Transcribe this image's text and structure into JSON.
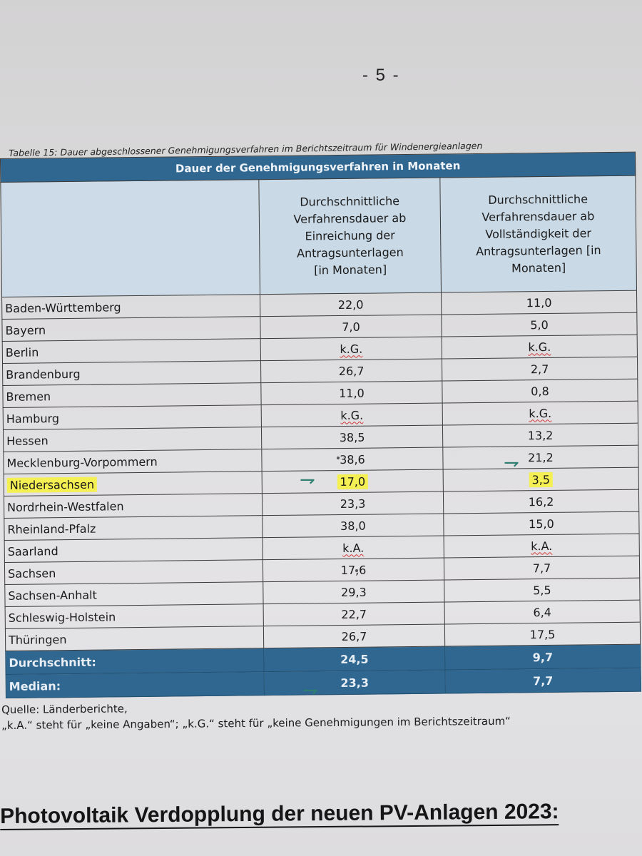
{
  "page": {
    "number": "- 5 -"
  },
  "caption": "Tabelle 15: Dauer abgeschlossener Genehmigungsverfahren im Berichtszeitraum für Windenergieanlagen",
  "table": {
    "title": "Dauer der Genehmigungsverfahren in Monaten",
    "col1_header": "Durchschnittliche Verfahrensdauer ab Einreichung der Antragsunterlagen [in Monaten]",
    "col2_header": "Durchschnittliche Verfahrensdauer ab Vollständigkeit der Antragsunterlagen [in Monaten]",
    "rows": [
      {
        "state": "Baden-Württemberg",
        "col1": "22,0",
        "col2": "11,0"
      },
      {
        "state": "Bayern",
        "col1": "7,0",
        "col2": "5,0"
      },
      {
        "state": "Berlin",
        "col1": "k.G.",
        "col2": "k.G."
      },
      {
        "state": "Brandenburg",
        "col1": "26,7",
        "col2": "2,7"
      },
      {
        "state": "Bremen",
        "col1": "11,0",
        "col2": "0,8"
      },
      {
        "state": "Hamburg",
        "col1": "k.G.",
        "col2": "k.G."
      },
      {
        "state": "Hessen",
        "col1": "38,5",
        "col2": "13,2"
      },
      {
        "state": "Mecklenburg-Vorpommern",
        "col1": "38,6",
        "col2": "21,2"
      },
      {
        "state": "Niedersachsen",
        "col1": "17,0",
        "col2": "3,5"
      },
      {
        "state": "Nordrhein-Westfalen",
        "col1": "23,3",
        "col2": "16,2"
      },
      {
        "state": "Rheinland-Pfalz",
        "col1": "38,0",
        "col2": "15,0"
      },
      {
        "state": "Saarland",
        "col1": "k.A.",
        "col2": "k.A."
      },
      {
        "state": "Sachsen",
        "col1": "17,6",
        "col2": "7,7"
      },
      {
        "state": "Sachsen-Anhalt",
        "col1": "29,3",
        "col2": "5,5"
      },
      {
        "state": "Schleswig-Holstein",
        "col1": "22,7",
        "col2": "6,4"
      },
      {
        "state": "Thüringen",
        "col1": "26,7",
        "col2": "17,5"
      }
    ],
    "summary": [
      {
        "label": "Durchschnitt:",
        "col1": "24,5",
        "col2": "9,7"
      },
      {
        "label": "Median:",
        "col1": "23,3",
        "col2": "7,7"
      }
    ]
  },
  "footnotes": {
    "source": "Quelle: Länderberichte,",
    "legend": "„k.A.“ steht für „keine Angaben“; „k.G.“ steht für „keine Genehmigungen im Berichtszeitraum“"
  },
  "heading": "Photovoltaik Verdopplung der neuen PV-Anlagen 2023:",
  "handwritten": {
    "mark_char": "⇁",
    "highlight_color": "#f4ef52"
  }
}
